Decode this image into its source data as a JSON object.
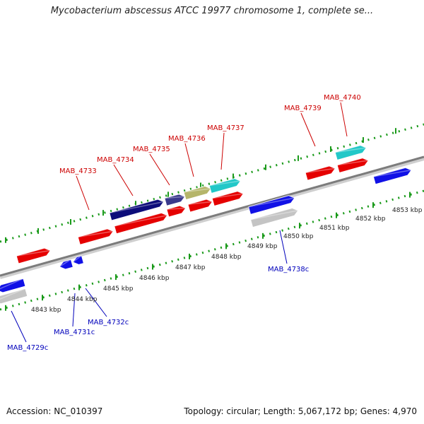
{
  "title": "Mycobacterium abscessus ATCC 19977 chromosome 1, complete se...",
  "footer": {
    "accession": "Accession: NC_010397",
    "topology": "Topology: circular; Length: 5,067,172 bp; Genes: 4,970"
  },
  "colors": {
    "forward_label": "#cc0000",
    "reverse_label": "#0000bb",
    "backbone": "#8a8a8a",
    "tick": "#1a9a1a",
    "red": "#e50000",
    "blue": "#1111e6",
    "navy": "#0d0d7a",
    "purple": "#3a3a8c",
    "olive": "#b5b56a",
    "cyan": "#22c8c8",
    "gray": "#c4c4c4"
  },
  "kbp_labels": [
    "4843 kbp",
    "4844 kbp",
    "4845 kbp",
    "4846 kbp",
    "4847 kbp",
    "4848 kbp",
    "4849 kbp",
    "4850 kbp",
    "4851 kbp",
    "4852 kbp",
    "4853 kbp"
  ],
  "gene_labels": [
    {
      "name": "MAB_4733",
      "strand": "forward"
    },
    {
      "name": "MAB_4734",
      "strand": "forward"
    },
    {
      "name": "MAB_4735",
      "strand": "forward"
    },
    {
      "name": "MAB_4736",
      "strand": "forward"
    },
    {
      "name": "MAB_4737",
      "strand": "forward"
    },
    {
      "name": "MAB_4739",
      "strand": "forward"
    },
    {
      "name": "MAB_4740",
      "strand": "forward"
    },
    {
      "name": "MAB_4729c",
      "strand": "reverse"
    },
    {
      "name": "MAB_4731c",
      "strand": "reverse"
    },
    {
      "name": "MAB_4732c",
      "strand": "reverse"
    },
    {
      "name": "MAB_4738c",
      "strand": "reverse"
    }
  ]
}
